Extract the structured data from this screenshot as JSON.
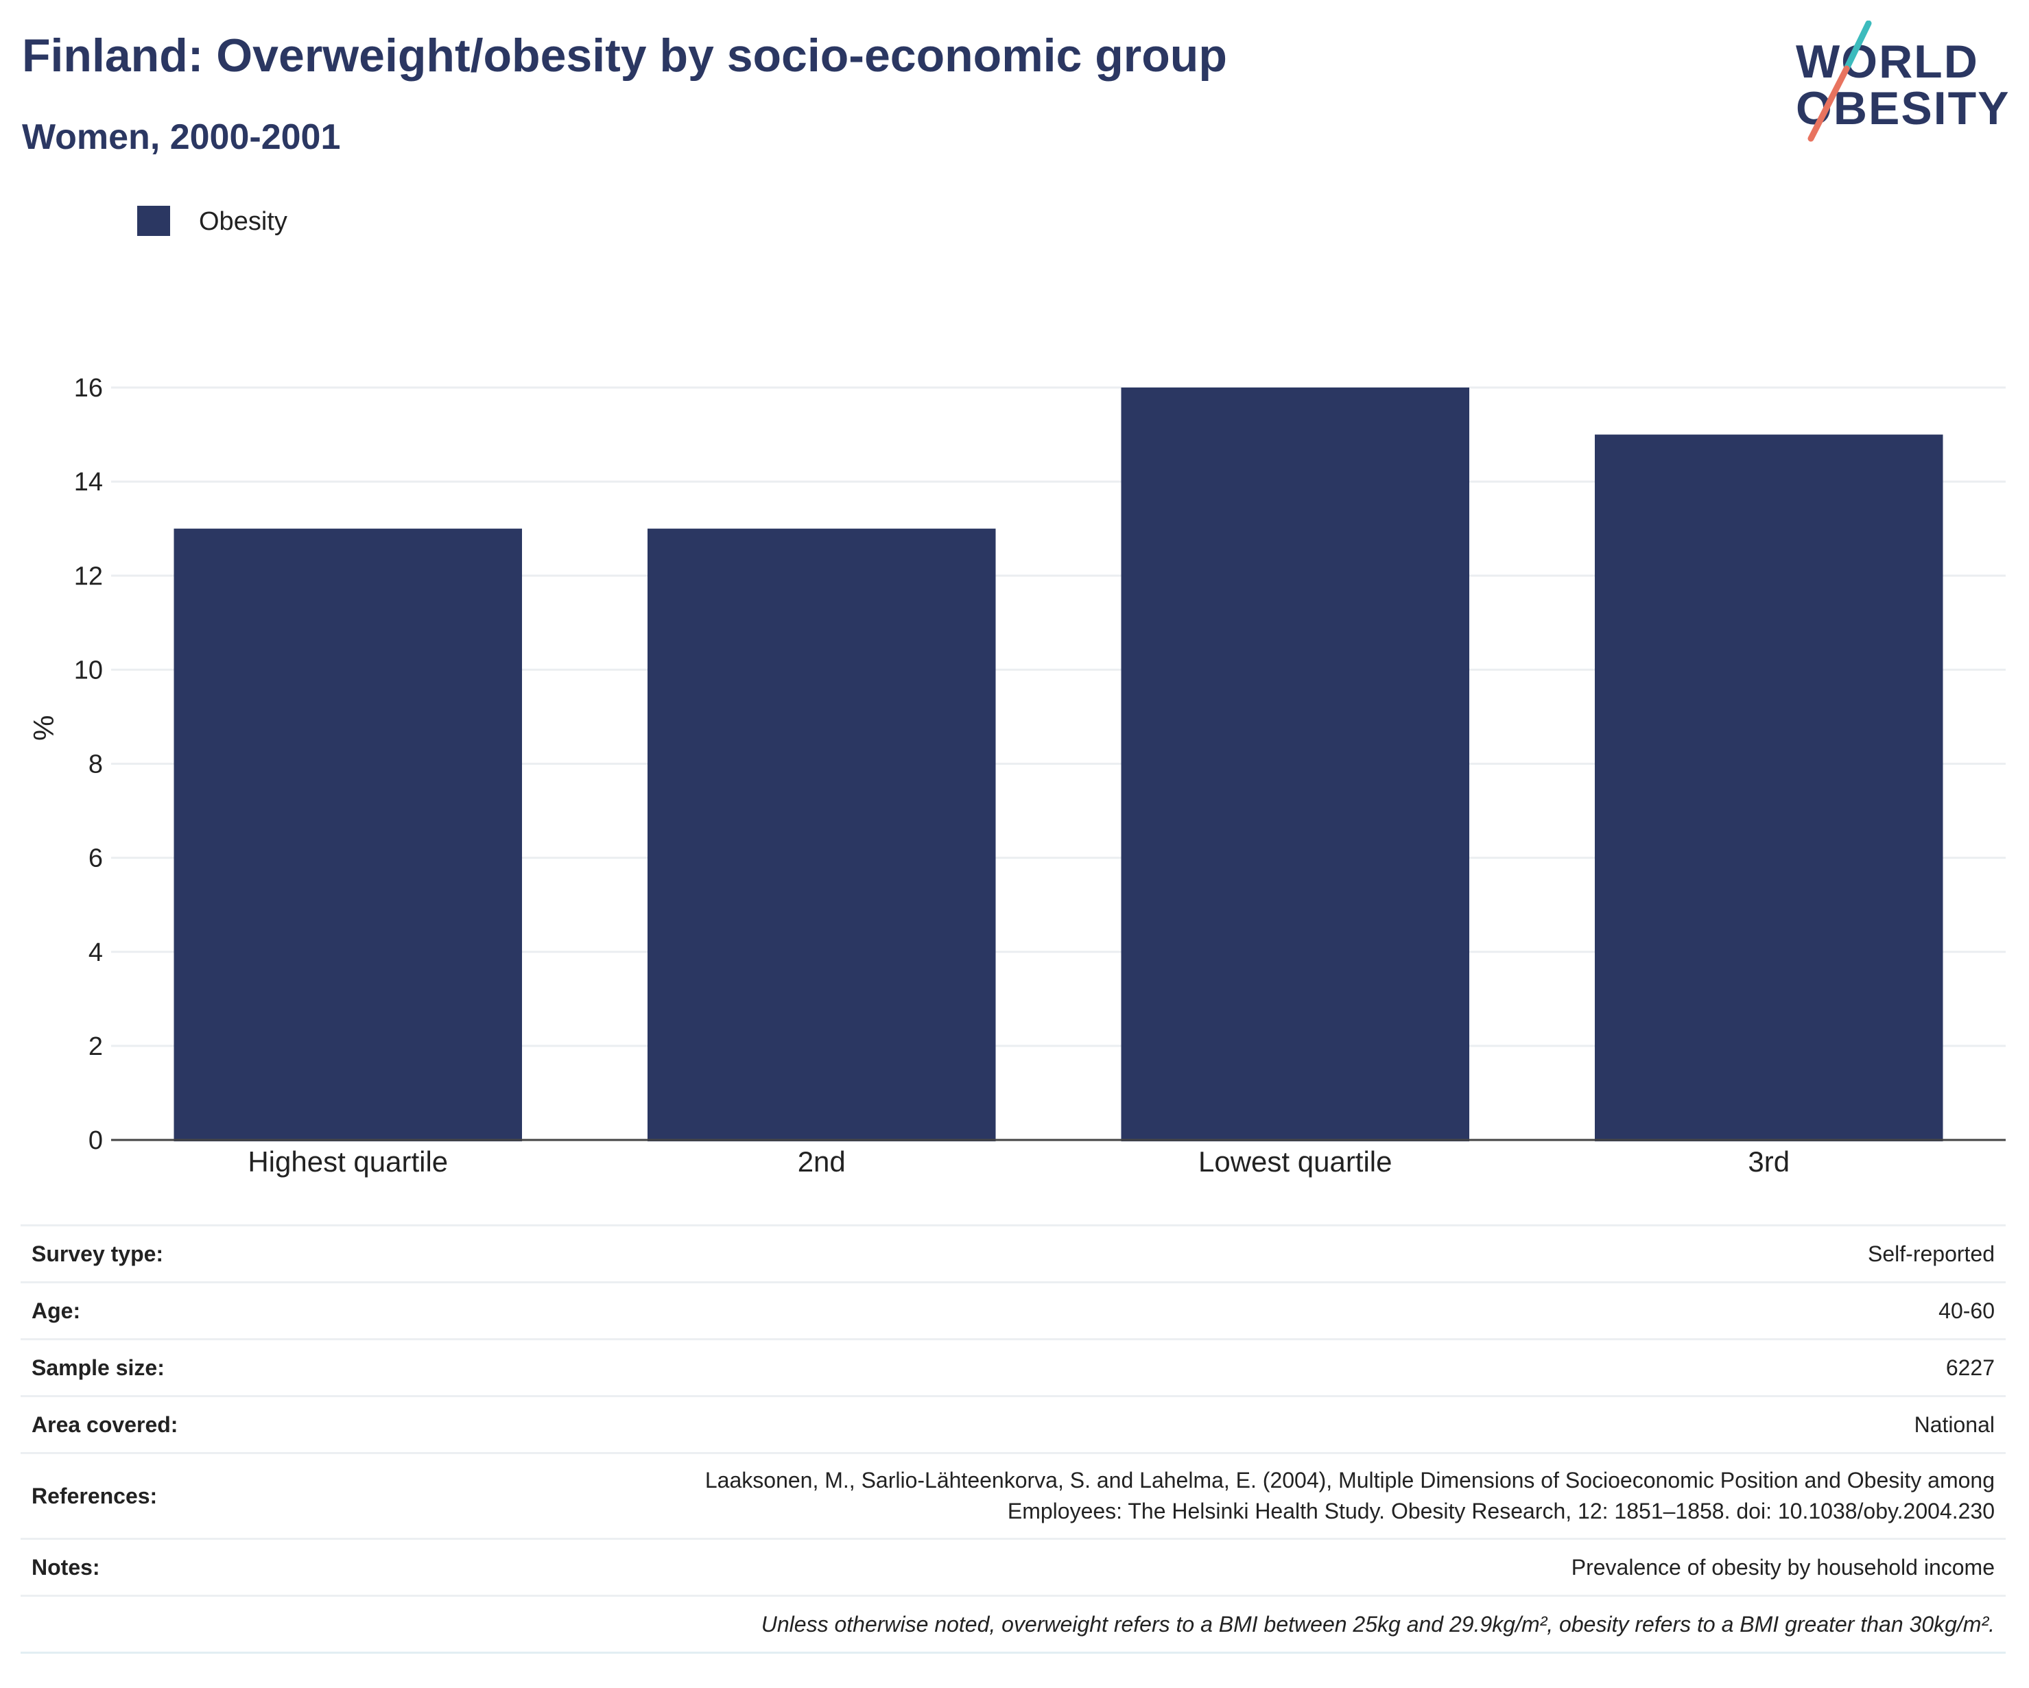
{
  "header": {
    "title": "Finland: Overweight/obesity by socio-economic group",
    "subtitle": "Women, 2000-2001"
  },
  "logo": {
    "line1": "WORLD",
    "line2": "OBESITY",
    "colors": {
      "text": "#2b3762",
      "teal": "#3cbbbd",
      "coral": "#e8735f"
    }
  },
  "chart_data": {
    "type": "bar",
    "categories": [
      "Highest quartile",
      "2nd",
      "Lowest quartile",
      "3rd"
    ],
    "series": [
      {
        "name": "Obesity",
        "values": [
          13,
          13,
          16,
          15
        ],
        "color": "#2b3762"
      }
    ],
    "ylabel": "%",
    "xlabel": "",
    "ylim": [
      0,
      16
    ],
    "yticks": [
      0,
      2,
      4,
      6,
      8,
      10,
      12,
      14,
      16
    ],
    "grid": true,
    "legend_placement": "top-left"
  },
  "meta": {
    "rows": [
      {
        "key": "Survey type:",
        "value": "Self-reported"
      },
      {
        "key": "Age:",
        "value": "40-60"
      },
      {
        "key": "Sample size:",
        "value": "6227"
      },
      {
        "key": "Area covered:",
        "value": "National"
      },
      {
        "key": "References:",
        "value_line1": "Laaksonen, M., Sarlio-Lähteenkorva, S. and Lahelma, E. (2004), Multiple Dimensions of Socioeconomic Position and Obesity among",
        "value_line2": "Employees: The Helsinki Health Study. Obesity Research, 12: 1851–1858. doi: 10.1038/oby.2004.230"
      },
      {
        "key": "Notes:",
        "value": "Prevalence of obesity by household income"
      }
    ],
    "footnote": "Unless otherwise noted, overweight refers to a BMI between 25kg and 29.9kg/m², obesity refers to a BMI greater than 30kg/m²."
  }
}
